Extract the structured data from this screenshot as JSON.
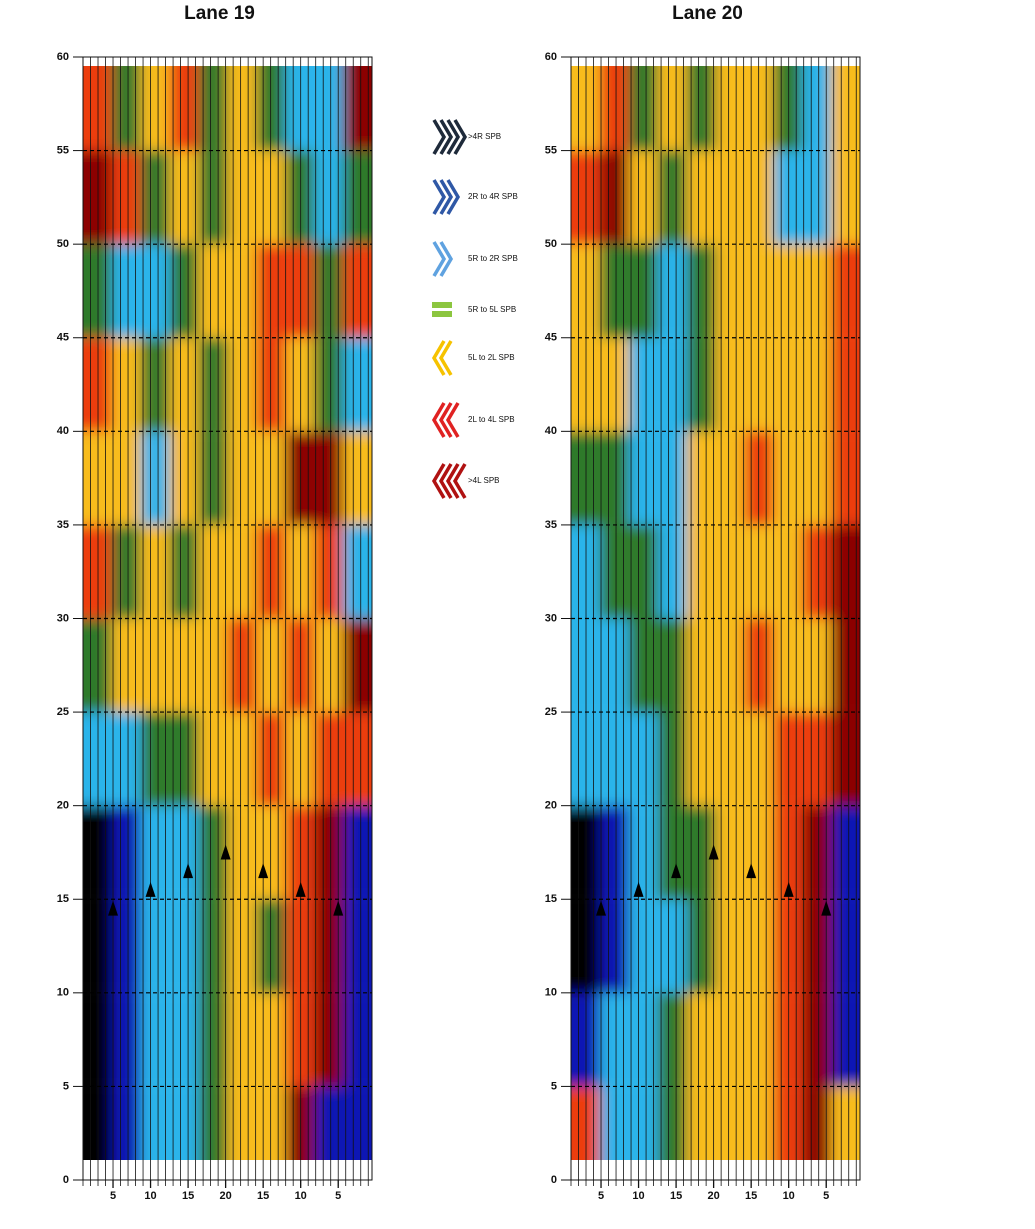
{
  "chart_data": [
    {
      "type": "heatmap",
      "title": "Lane 19",
      "xlim": [
        1,
        39.5
      ],
      "ylim": [
        0,
        60
      ],
      "xticks": [
        5,
        10,
        15,
        20,
        {
          "value": 25,
          "label": "15"
        },
        {
          "value": 30,
          "label": "10"
        },
        {
          "value": 35,
          "label": "5"
        }
      ],
      "yticks": [
        0,
        5,
        10,
        15,
        20,
        25,
        30,
        35,
        40,
        45,
        50,
        55,
        60
      ],
      "x_bins": [
        1,
        4.85,
        8.7,
        12.55,
        16.4,
        20.25,
        24.1,
        27.95,
        31.8,
        35.65,
        39.5
      ],
      "y_bins": [
        1,
        5,
        10,
        15,
        20,
        25,
        30,
        35,
        40,
        45,
        50,
        55,
        59.5
      ],
      "values": [
        [
          0,
          1,
          2,
          2,
          3,
          4,
          4,
          6,
          1,
          1
        ],
        [
          0,
          1,
          2,
          2,
          3,
          4,
          4,
          5,
          6,
          1
        ],
        [
          0,
          1,
          2,
          2,
          3,
          4,
          3,
          5,
          6,
          1
        ],
        [
          0,
          1,
          2,
          2,
          3,
          4,
          4,
          5,
          6,
          1
        ],
        [
          2,
          2,
          3,
          3,
          4,
          4,
          5,
          4,
          5,
          5
        ],
        [
          3,
          4,
          4,
          4,
          4,
          5,
          4,
          5,
          4,
          6
        ],
        [
          5,
          3,
          4,
          3,
          4,
          4,
          5,
          4,
          5,
          2
        ],
        [
          4,
          4,
          2,
          4,
          3,
          4,
          4,
          6,
          6,
          4
        ],
        [
          5,
          4,
          3,
          4,
          3,
          4,
          5,
          4,
          3,
          2
        ],
        [
          3,
          2,
          2,
          3,
          4,
          4,
          5,
          5,
          3,
          5
        ],
        [
          6,
          5,
          3,
          4,
          3,
          4,
          4,
          3,
          2,
          3
        ],
        [
          5,
          3,
          4,
          5,
          3,
          4,
          3,
          2,
          2,
          6
        ]
      ],
      "colors": [
        "#000000",
        "#0a14b4",
        "#2cb4ea",
        "#2f7a2a",
        "#f8bc1c",
        "#ec3c10",
        "#8c0000"
      ],
      "arrows": {
        "x": [
          5,
          10,
          15,
          20,
          25,
          30,
          35
        ],
        "y": [
          14.5,
          15.5,
          16.5,
          17.5,
          16.5,
          15.5,
          14.5
        ]
      },
      "grid": true
    },
    {
      "type": "heatmap",
      "title": "Lane 20",
      "xlim": [
        1,
        39.5
      ],
      "ylim": [
        0,
        60
      ],
      "xticks": [
        5,
        10,
        15,
        20,
        {
          "value": 25,
          "label": "15"
        },
        {
          "value": 30,
          "label": "10"
        },
        {
          "value": 35,
          "label": "5"
        }
      ],
      "yticks": [
        0,
        5,
        10,
        15,
        20,
        25,
        30,
        35,
        40,
        45,
        50,
        55,
        60
      ],
      "x_bins": [
        1,
        4.85,
        8.7,
        12.55,
        16.4,
        20.25,
        24.1,
        27.95,
        31.8,
        35.65,
        39.5
      ],
      "y_bins": [
        1,
        5,
        10,
        15,
        20,
        25,
        30,
        35,
        40,
        45,
        50,
        55,
        59.5
      ],
      "values": [
        [
          5,
          2,
          2,
          3,
          4,
          4,
          4,
          5,
          6,
          4
        ],
        [
          1,
          2,
          2,
          3,
          4,
          4,
          4,
          5,
          6,
          1
        ],
        [
          0,
          1,
          2,
          2,
          3,
          4,
          4,
          5,
          6,
          1
        ],
        [
          0,
          1,
          2,
          3,
          3,
          4,
          4,
          5,
          6,
          1
        ],
        [
          2,
          2,
          2,
          3,
          4,
          4,
          4,
          5,
          5,
          6
        ],
        [
          2,
          2,
          3,
          3,
          4,
          4,
          5,
          4,
          4,
          6
        ],
        [
          2,
          3,
          3,
          2,
          4,
          4,
          4,
          4,
          5,
          6
        ],
        [
          3,
          3,
          2,
          2,
          4,
          4,
          5,
          4,
          4,
          5
        ],
        [
          4,
          4,
          2,
          2,
          3,
          4,
          4,
          4,
          4,
          5
        ],
        [
          4,
          3,
          3,
          2,
          3,
          4,
          4,
          4,
          4,
          5
        ],
        [
          5,
          6,
          4,
          3,
          4,
          4,
          4,
          2,
          2,
          4
        ],
        [
          4,
          5,
          3,
          4,
          3,
          4,
          4,
          3,
          2,
          4
        ]
      ],
      "colors": [
        "#000000",
        "#0a14b4",
        "#2cb4ea",
        "#2f7a2a",
        "#f8bc1c",
        "#ec3c10",
        "#8c0000"
      ],
      "arrows": {
        "x": [
          5,
          10,
          15,
          20,
          25,
          30,
          35
        ],
        "y": [
          14.5,
          15.5,
          16.5,
          17.5,
          16.5,
          15.5,
          14.5
        ]
      },
      "grid": true
    }
  ],
  "legend": {
    "items": [
      {
        "label": ">4R SPB",
        "color": "#1e2a3a"
      },
      {
        "label": "2R to 4R SPB",
        "color": "#2f58a6"
      },
      {
        "label": "5R to 2R SPB",
        "color": "#5fa2e0"
      },
      {
        "label": "5R to 5L SPB",
        "color": "#8cc63f"
      },
      {
        "label": "5L to 2L SPB",
        "color": "#f6c200"
      },
      {
        "label": "2L to 4L SPB",
        "color": "#e02222"
      },
      {
        "label": ">4L SPB",
        "color": "#b01212"
      }
    ]
  }
}
